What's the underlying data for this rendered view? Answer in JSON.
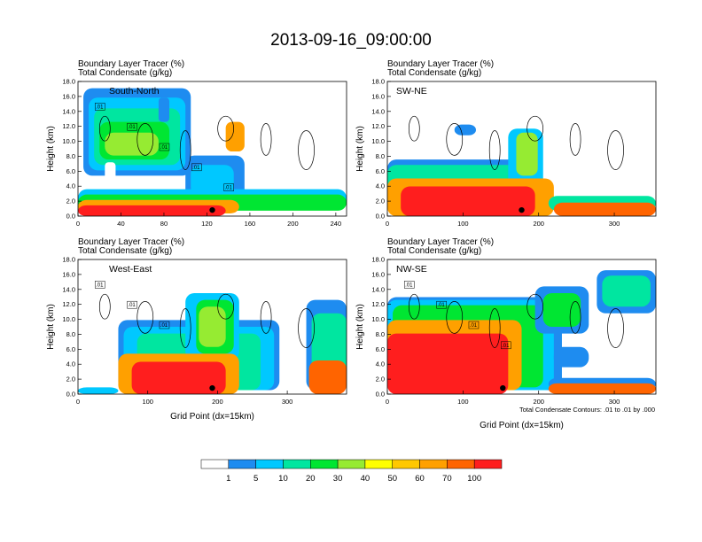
{
  "title": "2013-09-16_09:00:00",
  "footnote": "Total Condensate Contours: .01 to .01 by .000",
  "colorbar": {
    "labels": [
      "1",
      "5",
      "10",
      "20",
      "30",
      "40",
      "50",
      "60",
      "70",
      "100"
    ],
    "colors": [
      "#ffffff",
      "#1e8cf0",
      "#00c8ff",
      "#00e6a0",
      "#00e632",
      "#96eb32",
      "#ffff00",
      "#ffc800",
      "#ffa000",
      "#ff6400",
      "#ff1e1e"
    ]
  },
  "chart_data": [
    {
      "type": "heatmap",
      "panel_label": "South-North",
      "subtitle_left": "Boundary Layer Tracer",
      "subtitle_right": "(%)",
      "subtitle2_left": "Total Condensate",
      "subtitle2_right": "(g/kg)",
      "ylabel": "Height (km)",
      "xlabel": "",
      "xlim": [
        0,
        250
      ],
      "ylim": [
        0,
        18
      ],
      "xticks": [
        0,
        40,
        80,
        120,
        160,
        200,
        240
      ],
      "yticks": [
        0,
        2,
        4,
        6,
        8,
        10,
        12,
        14,
        16,
        18
      ],
      "contour_labels": [
        ".01",
        ".01",
        ".01",
        ".01",
        ".01"
      ]
    },
    {
      "type": "heatmap",
      "panel_label": "SW-NE",
      "subtitle_left": "Boundary Layer Tracer",
      "subtitle_right": "(%)",
      "subtitle2_left": "Total Condensate",
      "subtitle2_right": "(g/kg)",
      "ylabel": "Height (km)",
      "xlabel": "",
      "xlim": [
        0,
        355
      ],
      "ylim": [
        0,
        18
      ],
      "xticks": [
        0,
        100,
        200,
        300
      ],
      "yticks": [
        0,
        2,
        4,
        6,
        8,
        10,
        12,
        14,
        16,
        18
      ],
      "contour_labels": []
    },
    {
      "type": "heatmap",
      "panel_label": "West-East",
      "subtitle_left": "Boundary Layer Tracer",
      "subtitle_right": "(%)",
      "subtitle2_left": "Total Condensate",
      "subtitle2_right": "(g/kg)",
      "ylabel": "Height (km)",
      "xlabel": "Grid Point (dx=15km)",
      "xlim": [
        0,
        385
      ],
      "ylim": [
        0,
        18
      ],
      "xticks": [
        0,
        100,
        200,
        300
      ],
      "yticks": [
        0,
        2,
        4,
        6,
        8,
        10,
        12,
        14,
        16,
        18
      ],
      "contour_labels": [
        ".01",
        ".01",
        ".01"
      ]
    },
    {
      "type": "heatmap",
      "panel_label": "NW-SE",
      "subtitle_left": "Boundary Layer Tracer",
      "subtitle_right": "(%)",
      "subtitle2_left": "Total Condensate",
      "subtitle2_right": "(g/kg)",
      "ylabel": "Height (km)",
      "xlabel": "Grid Point (dx=15km)",
      "xlim": [
        0,
        355
      ],
      "ylim": [
        0,
        18
      ],
      "xticks": [
        0,
        100,
        200,
        300
      ],
      "yticks": [
        0,
        2,
        4,
        6,
        8,
        10,
        12,
        14,
        16,
        18
      ],
      "contour_labels": [
        ".01",
        ".01",
        ".01",
        ".01"
      ]
    }
  ]
}
